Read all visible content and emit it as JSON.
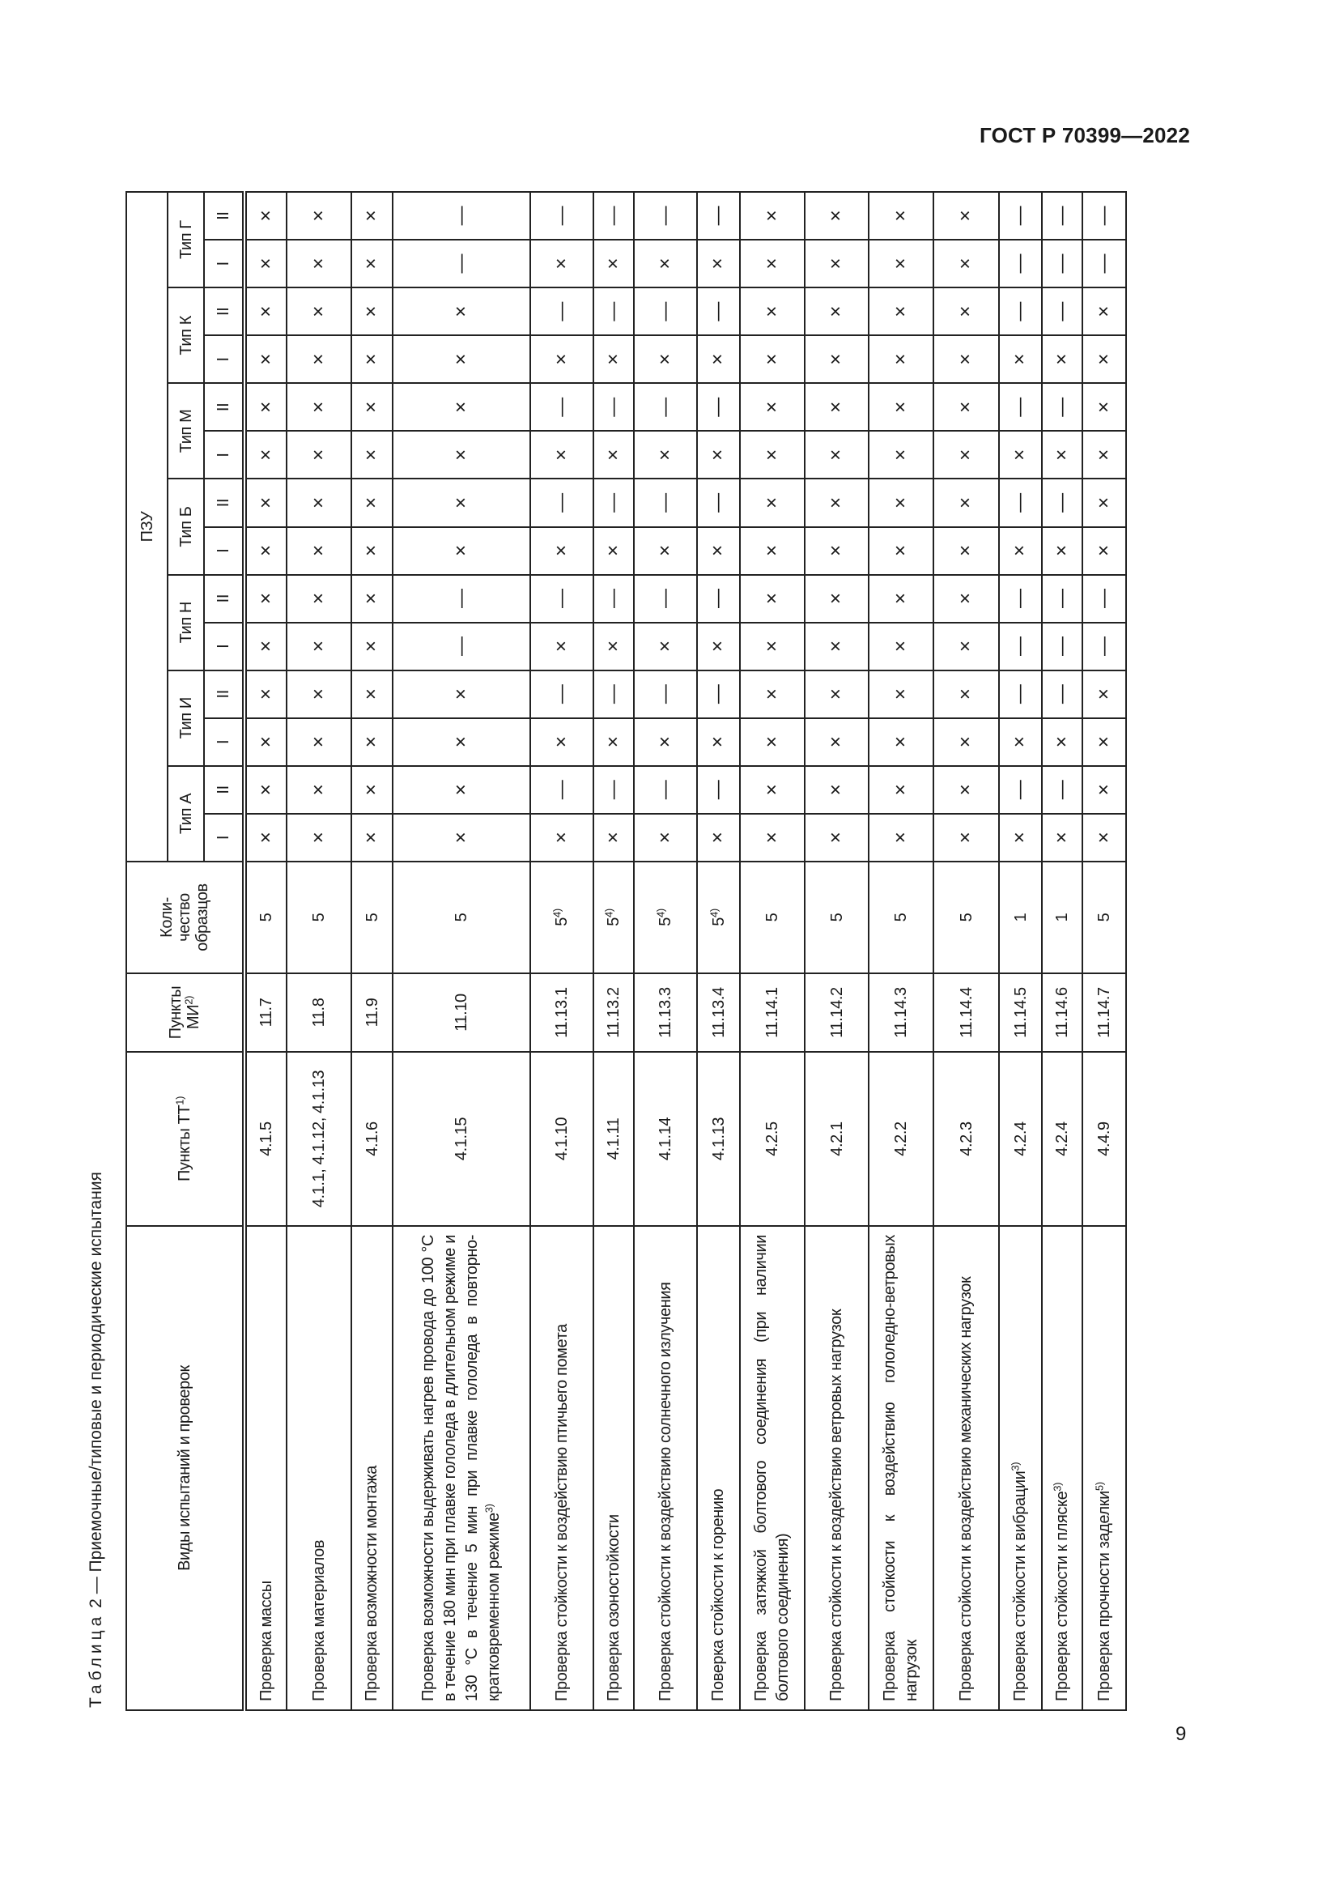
{
  "header": {
    "doc_code": "ГОСТ Р 70399—2022"
  },
  "page_number": "9",
  "caption": {
    "label": "Таблица",
    "text": "2 — Приемочные/типовые и периодические испытания"
  },
  "table": {
    "columns": {
      "name": "Виды испытаний и проверок",
      "tt": "Пункты ТТ",
      "tt_sup": "1)",
      "mi_line1": "Пункты",
      "mi_line2": "МИ",
      "mi_sup": "2)",
      "qty_line1": "Коли-",
      "qty_line2": "чество",
      "qty_line3": "образцов",
      "group": "ПЗУ",
      "types": [
        "Тип А",
        "Тип И",
        "Тип Н",
        "Тип Б",
        "Тип М",
        "Тип К",
        "Тип Г"
      ],
      "subtypes": [
        "I",
        "II"
      ]
    },
    "rows": [
      {
        "name": "Проверка массы",
        "sup": "",
        "tt": "4.1.5",
        "mi": "11.7",
        "qty": "5",
        "qty_sup": "",
        "marks": [
          "×",
          "×",
          "×",
          "×",
          "×",
          "×",
          "×",
          "×",
          "×",
          "×",
          "×",
          "×",
          "×",
          "×"
        ]
      },
      {
        "name": "Проверка материалов",
        "sup": "",
        "tt": "4.1.1, 4.1.12, 4.1.13",
        "mi": "11.8",
        "qty": "5",
        "qty_sup": "",
        "marks": [
          "×",
          "×",
          "×",
          "×",
          "×",
          "×",
          "×",
          "×",
          "×",
          "×",
          "×",
          "×",
          "×",
          "×"
        ]
      },
      {
        "name": "Проверка возможности монтажа",
        "sup": "",
        "tt": "4.1.6",
        "mi": "11.9",
        "qty": "5",
        "qty_sup": "",
        "marks": [
          "×",
          "×",
          "×",
          "×",
          "×",
          "×",
          "×",
          "×",
          "×",
          "×",
          "×",
          "×",
          "×",
          "×"
        ]
      },
      {
        "name": "Проверка возможности выдерживать нагрев провода до 100 °С в течение 180 мин при плавке гололеда в длительном режиме и 130 °С в течение 5 мин при плавке гололеда в повторно-кратковременном режиме",
        "sup": "3)",
        "tt": "4.1.15",
        "mi": "11.10",
        "qty": "5",
        "qty_sup": "",
        "marks": [
          "×",
          "×",
          "×",
          "×",
          "—",
          "—",
          "×",
          "×",
          "×",
          "×",
          "×",
          "×",
          "—",
          "—"
        ]
      },
      {
        "name": "Проверка стойкости к воздействию птичьего помета",
        "sup": "",
        "tt": "4.1.10",
        "mi": "11.13.1",
        "qty": "5",
        "qty_sup": "4)",
        "marks": [
          "×",
          "—",
          "×",
          "—",
          "×",
          "—",
          "×",
          "—",
          "×",
          "—",
          "×",
          "—",
          "×",
          "—"
        ]
      },
      {
        "name": "Проверка озоностойкости",
        "sup": "",
        "tt": "4.1.11",
        "mi": "11.13.2",
        "qty": "5",
        "qty_sup": "4)",
        "marks": [
          "×",
          "—",
          "×",
          "—",
          "×",
          "—",
          "×",
          "—",
          "×",
          "—",
          "×",
          "—",
          "×",
          "—"
        ]
      },
      {
        "name": "Проверка стойкости к воздействию солнечного излучения",
        "sup": "",
        "tt": "4.1.14",
        "mi": "11.13.3",
        "qty": "5",
        "qty_sup": "4)",
        "marks": [
          "×",
          "—",
          "×",
          "—",
          "×",
          "—",
          "×",
          "—",
          "×",
          "—",
          "×",
          "—",
          "×",
          "—"
        ]
      },
      {
        "name": "Поверка стойкости к горению",
        "sup": "",
        "tt": "4.1.13",
        "mi": "11.13.4",
        "qty": "5",
        "qty_sup": "4)",
        "marks": [
          "×",
          "—",
          "×",
          "—",
          "×",
          "—",
          "×",
          "—",
          "×",
          "—",
          "×",
          "—",
          "×",
          "—"
        ]
      },
      {
        "name": "Проверка затяжкой болтового соединения (при наличии болтового соединения)",
        "sup": "",
        "tt": "4.2.5",
        "mi": "11.14.1",
        "qty": "5",
        "qty_sup": "",
        "marks": [
          "×",
          "×",
          "×",
          "×",
          "×",
          "×",
          "×",
          "×",
          "×",
          "×",
          "×",
          "×",
          "×",
          "×"
        ]
      },
      {
        "name": "Проверка стойкости к воздействию ветровых нагрузок",
        "sup": "",
        "tt": "4.2.1",
        "mi": "11.14.2",
        "qty": "5",
        "qty_sup": "",
        "marks": [
          "×",
          "×",
          "×",
          "×",
          "×",
          "×",
          "×",
          "×",
          "×",
          "×",
          "×",
          "×",
          "×",
          "×"
        ]
      },
      {
        "name": "Проверка стойкости к воздействию гололедно-ветровых нагрузок",
        "sup": "",
        "tt": "4.2.2",
        "mi": "11.14.3",
        "qty": "5",
        "qty_sup": "",
        "marks": [
          "×",
          "×",
          "×",
          "×",
          "×",
          "×",
          "×",
          "×",
          "×",
          "×",
          "×",
          "×",
          "×",
          "×"
        ]
      },
      {
        "name": "Проверка стойкости к воздействию механических нагрузок",
        "sup": "",
        "tt": "4.2.3",
        "mi": "11.14.4",
        "qty": "5",
        "qty_sup": "",
        "marks": [
          "×",
          "×",
          "×",
          "×",
          "×",
          "×",
          "×",
          "×",
          "×",
          "×",
          "×",
          "×",
          "×",
          "×"
        ]
      },
      {
        "name": "Проверка стойкости к вибрации",
        "sup": "3)",
        "tt": "4.2.4",
        "mi": "11.14.5",
        "qty": "1",
        "qty_sup": "",
        "marks": [
          "×",
          "—",
          "×",
          "—",
          "—",
          "—",
          "×",
          "—",
          "×",
          "—",
          "×",
          "—",
          "—",
          "—"
        ]
      },
      {
        "name": "Проверка стойкости к пляске",
        "sup": "3)",
        "tt": "4.2.4",
        "mi": "11.14.6",
        "qty": "1",
        "qty_sup": "",
        "marks": [
          "×",
          "—",
          "×",
          "—",
          "—",
          "—",
          "×",
          "—",
          "×",
          "—",
          "×",
          "—",
          "—",
          "—"
        ]
      },
      {
        "name": "Проверка прочности заделки",
        "sup": "5)",
        "tt": "4.4.9",
        "mi": "11.14.7",
        "qty": "5",
        "qty_sup": "",
        "marks": [
          "×",
          "×",
          "×",
          "×",
          "—",
          "—",
          "×",
          "×",
          "×",
          "×",
          "×",
          "×",
          "—",
          "—"
        ]
      }
    ]
  }
}
